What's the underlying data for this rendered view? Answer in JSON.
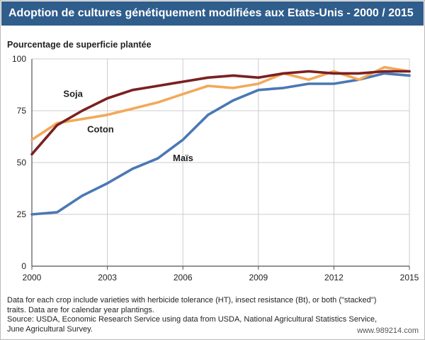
{
  "header": {
    "title": "Adoption de cultures génétiquement modifiées  aux Etats-Unis - 2000 / 2015"
  },
  "colors": {
    "header_bg": "#2f5d8c",
    "soja": "#7b2020",
    "coton": "#f2a95a",
    "mais": "#4a78b4",
    "grid": "#cccccc",
    "axis": "#555555"
  },
  "chart_data": {
    "type": "line",
    "title": "Adoption de cultures génétiquement modifiées  aux Etats-Unis - 2000 / 2015",
    "xlabel": "",
    "ylabel": "Pourcentage de superficie plantée",
    "xlim": [
      2000,
      2015
    ],
    "ylim": [
      0,
      100
    ],
    "xticks": [
      "2000",
      "2003",
      "2006",
      "2009",
      "2012",
      "2015"
    ],
    "yticks": [
      "0",
      "25",
      "50",
      "75",
      "100"
    ],
    "grid": true,
    "x": [
      2000,
      2001,
      2002,
      2003,
      2004,
      2005,
      2006,
      2007,
      2008,
      2009,
      2010,
      2011,
      2012,
      2013,
      2014,
      2015
    ],
    "series": [
      {
        "name": "Soja",
        "color": "#7b2020",
        "values": [
          54,
          68,
          75,
          81,
          85,
          87,
          89,
          91,
          92,
          91,
          93,
          94,
          93,
          93,
          94,
          94
        ]
      },
      {
        "name": "Coton",
        "color": "#f2a95a",
        "values": [
          61,
          69,
          71,
          73,
          76,
          79,
          83,
          87,
          86,
          88,
          93,
          90,
          94,
          90,
          96,
          94
        ]
      },
      {
        "name": "Maïs",
        "color": "#4a78b4",
        "values": [
          25,
          26,
          34,
          40,
          47,
          52,
          61,
          73,
          80,
          85,
          86,
          88,
          88,
          90,
          93,
          92
        ]
      }
    ]
  },
  "notes": {
    "line1": "Data for each crop include varieties with herbicide tolerance (HT), insect resistance (Bt), or both (\"stacked\")",
    "line2": "traits. Data are for calendar year plantings.",
    "line3": "Source: USDA, Economic Research Service using data from USDA, National Agricultural Statistics Service,",
    "line4": "June Agricultural Survey."
  },
  "watermark": "www.989214.com"
}
